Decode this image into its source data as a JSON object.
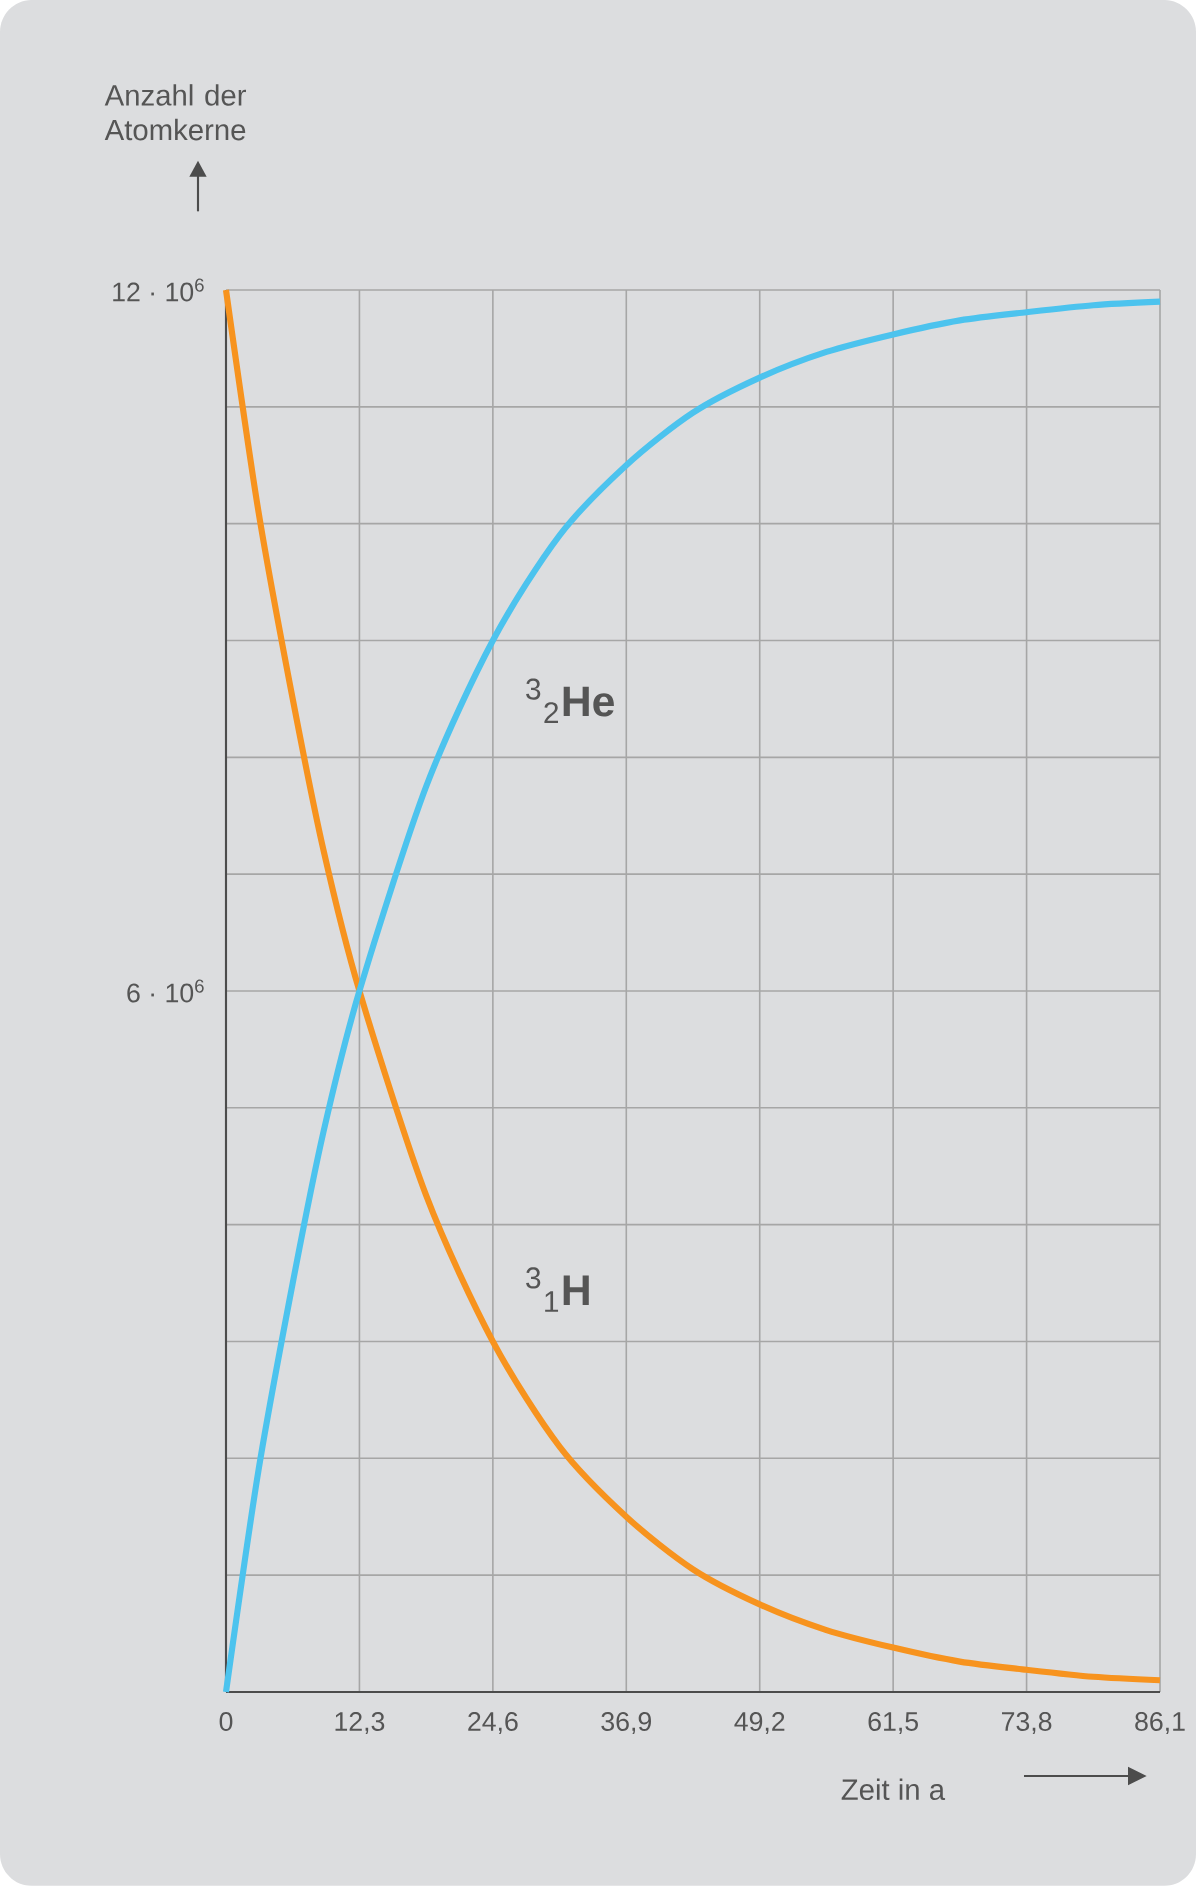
{
  "chart_data": {
    "type": "line",
    "xlabel": "Zeit in a",
    "ylabel": "Anzahl der Atomkerne",
    "x": [
      0,
      3,
      6.15,
      9,
      12.3,
      18.45,
      24.6,
      30.75,
      36.9,
      43.05,
      49.2,
      55.35,
      61.5,
      67.65,
      73.8,
      79.95,
      86.1
    ],
    "series": [
      {
        "color": "#f7931e",
        "values": [
          12000000,
          10100000,
          8500000,
          7200000,
          6000000,
          4250000,
          3000000,
          2100000,
          1500000,
          1050000,
          750000,
          530000,
          380000,
          260000,
          190000,
          130000,
          100000
        ]
      },
      {
        "color": "#4cc3ee",
        "values": [
          0,
          1900000,
          3500000,
          4800000,
          6000000,
          7750000,
          9000000,
          9900000,
          10500000,
          10950000,
          11250000,
          11470000,
          11620000,
          11740000,
          11810000,
          11870000,
          11900000
        ]
      }
    ],
    "annotations": [
      "$^{3}$$_{1}$**H**",
      "$^{3}$$_{2}$**He**"
    ],
    "xlim": [
      0,
      86.1
    ],
    "ylim": [
      0,
      12000000
    ],
    "xticks": [
      0,
      {
        "value": 12.3,
        "label": "12,3"
      },
      {
        "value": 24.6,
        "label": "24,6"
      },
      {
        "value": 36.9,
        "label": "36,9"
      },
      {
        "value": 49.2,
        "label": "49,2"
      },
      {
        "value": 61.5,
        "label": "61,5"
      },
      {
        "value": 73.8,
        "label": "73,8"
      },
      {
        "value": 86.1,
        "label": "86,1"
      }
    ],
    "yticks": [
      {
        "value": 0,
        "label": null
      },
      {
        "value": 1000000,
        "label": null
      },
      {
        "value": 2000000,
        "label": null
      },
      {
        "value": 3000000,
        "label": null
      },
      {
        "value": 4000000,
        "label": null
      },
      {
        "value": 5000000,
        "label": null
      },
      {
        "value": 6000000,
        "label": "6 · 10$^{6}$"
      },
      {
        "value": 7000000,
        "label": null
      },
      {
        "value": 8000000,
        "label": null
      },
      {
        "value": 9000000,
        "label": null
      },
      {
        "value": 10000000,
        "label": null
      },
      {
        "value": 11000000,
        "label": null
      },
      {
        "value": 12000000,
        "label": "12 · 10$^{6}$"
      }
    ],
    "grid": true,
    "marker": "none",
    "line_style": "solid"
  }
}
